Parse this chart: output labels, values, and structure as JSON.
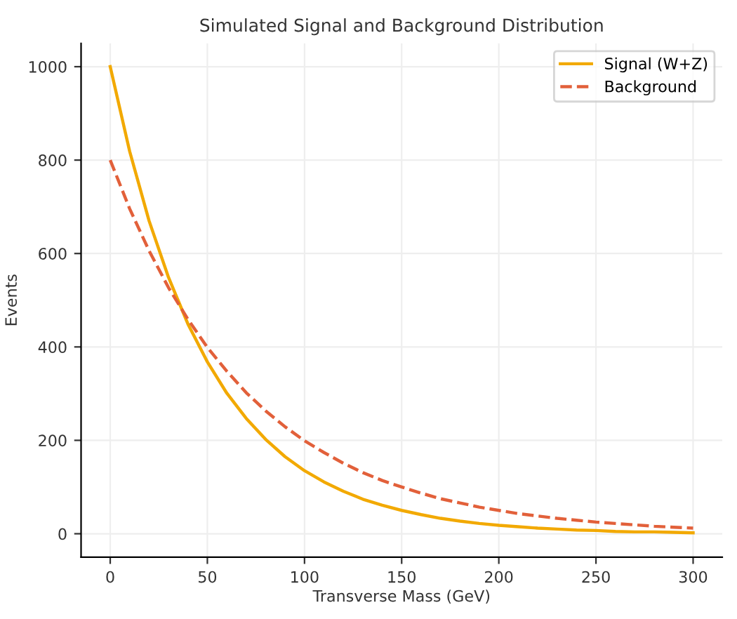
{
  "chart_data": {
    "type": "line",
    "title": "Simulated Signal and Background Distribution",
    "xlabel": "Transverse Mass (GeV)",
    "ylabel": "Events",
    "x": [
      0,
      10,
      20,
      30,
      40,
      50,
      60,
      70,
      80,
      90,
      100,
      110,
      120,
      130,
      140,
      150,
      160,
      170,
      180,
      190,
      200,
      210,
      220,
      230,
      240,
      250,
      260,
      270,
      280,
      290,
      300
    ],
    "series": [
      {
        "name": "Signal (W+Z)",
        "color": "#f2a900",
        "line_style": "solid",
        "values": [
          1000,
          819,
          670,
          549,
          449,
          368,
          301,
          247,
          202,
          165,
          135,
          111,
          91,
          74,
          61,
          50,
          41,
          33,
          27,
          22,
          18,
          15,
          12,
          10,
          8,
          7,
          5,
          4,
          4,
          3,
          2
        ]
      },
      {
        "name": "Background",
        "color": "#e2603a",
        "line_style": "dashed",
        "values": [
          800,
          696,
          606,
          527,
          459,
          399,
          348,
          302,
          263,
          229,
          199,
          174,
          151,
          131,
          114,
          100,
          87,
          75,
          66,
          57,
          50,
          43,
          38,
          33,
          29,
          25,
          22,
          19,
          16,
          14,
          12
        ]
      }
    ],
    "xlim": [
      -15,
      315
    ],
    "ylim": [
      -50,
      1050
    ],
    "xticks": [
      0,
      50,
      100,
      150,
      200,
      250,
      300
    ],
    "yticks": [
      0,
      200,
      400,
      600,
      800,
      1000
    ],
    "grid": true,
    "legend": "top right",
    "marker": "none"
  }
}
